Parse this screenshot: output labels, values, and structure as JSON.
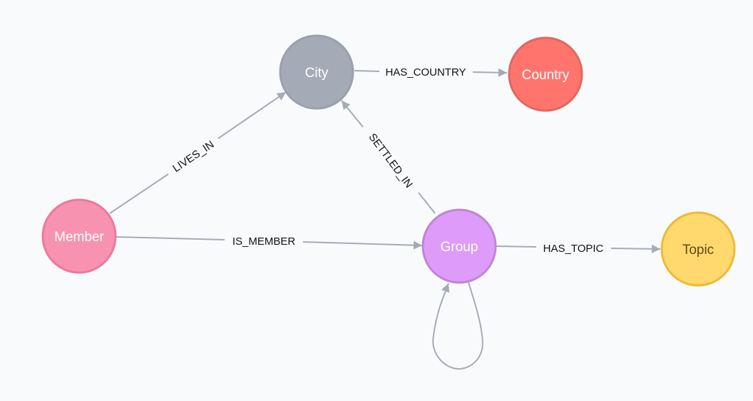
{
  "graph": {
    "nodes": [
      {
        "id": "city",
        "label": "City",
        "fill": "#a5abb6",
        "stroke": "#9aa1ac",
        "text_color": "#ffffff"
      },
      {
        "id": "country",
        "label": "Country",
        "fill": "#ff756e",
        "stroke": "#e06760",
        "text_color": "#ffffff"
      },
      {
        "id": "member",
        "label": "Member",
        "fill": "#f793b0",
        "stroke": "#ec799c",
        "text_color": "#ffffff"
      },
      {
        "id": "group",
        "label": "Group",
        "fill": "#de9bf9",
        "stroke": "#bf85d6",
        "text_color": "#ffffff"
      },
      {
        "id": "topic",
        "label": "Topic",
        "fill": "#ffd86e",
        "stroke": "#edba39",
        "text_color": "#604a0e"
      }
    ],
    "edges": [
      {
        "id": "has-country",
        "label": "HAS_COUNTRY",
        "source": "city",
        "target": "country"
      },
      {
        "id": "lives-in",
        "label": "LIVES_IN",
        "source": "member",
        "target": "city"
      },
      {
        "id": "settled-in",
        "label": "SETTLED_IN",
        "source": "group",
        "target": "city"
      },
      {
        "id": "is-member",
        "label": "IS_MEMBER",
        "source": "member",
        "target": "group"
      },
      {
        "id": "has-topic",
        "label": "HAS_TOPIC",
        "source": "group",
        "target": "topic"
      },
      {
        "id": "group-self",
        "label": "",
        "source": "group",
        "target": "group"
      }
    ],
    "edge_color": "#a5abb6"
  }
}
